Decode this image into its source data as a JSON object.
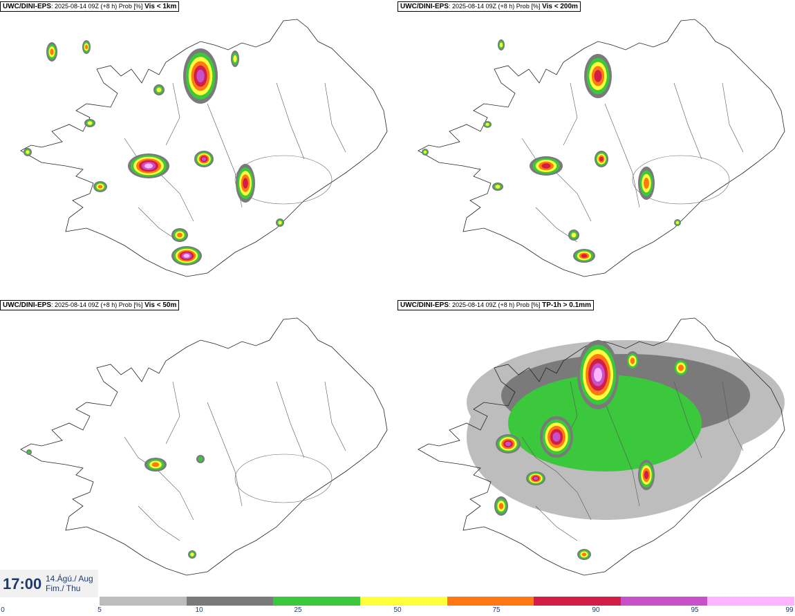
{
  "panels": [
    {
      "model": "UWC/DINI-EPS",
      "run": ": 2025-08-14 09Z (+8 h) Prob [%]",
      "field": "Vis < 1km"
    },
    {
      "model": "UWC/DINI-EPS",
      "run": ": 2025-08-14 09Z (+8 h) Prob [%]",
      "field": "Vis < 200m"
    },
    {
      "model": "UWC/DINI-EPS",
      "run": ": 2025-08-14 09Z (+8 h) Prob [%]",
      "field": "Vis < 50m"
    },
    {
      "model": "UWC/DINI-EPS",
      "run": ": 2025-08-14 09Z (+8 h) Prob [%]",
      "field": "TP-1h > 0.1mm"
    }
  ],
  "valid_time": {
    "time": "17:00",
    "date_line1": "14.Ágú./ Aug",
    "date_line2": "Fim./ Thu"
  },
  "colorbar": {
    "ticks": [
      "0",
      "5",
      "10",
      "25",
      "50",
      "75",
      "90",
      "95",
      "99"
    ],
    "colors": [
      "#bdbdbd",
      "#7a7a7a",
      "#3cc83c",
      "#ffff3c",
      "#ff7814",
      "#d21e46",
      "#c850c8",
      "#ffb4ff"
    ]
  }
}
